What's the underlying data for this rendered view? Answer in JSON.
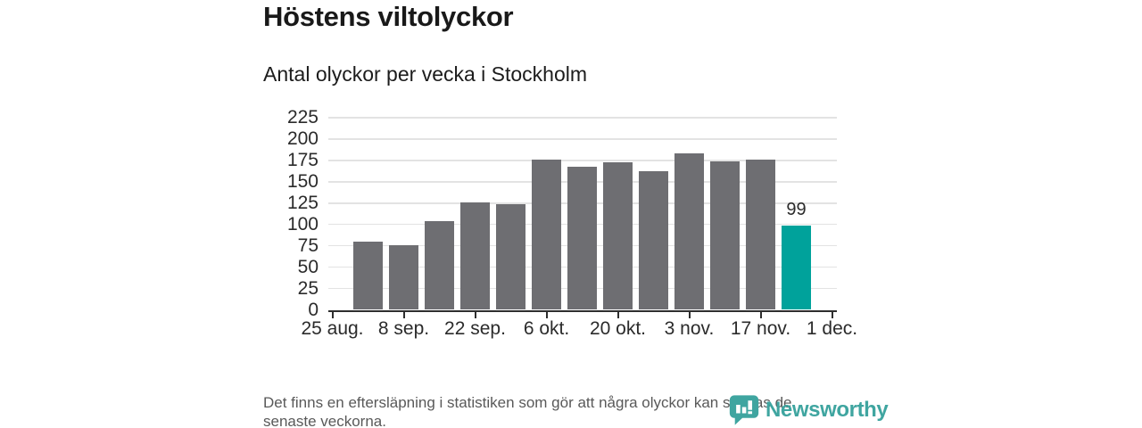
{
  "header": {
    "title": "Höstens viltolyckor",
    "subtitle": "Antal olyckor per vecka i Stockholm"
  },
  "footer": {
    "lines": [
      "Det finns en eftersläpning i statistiken som gör att några olyckor kan saknas de",
      "senaste veckorna."
    ]
  },
  "branding": {
    "logo_text": "Newsworthy",
    "logo_icon": "newsworthy-bubble-barchart-icon",
    "brand_color": "#3fa5a0"
  },
  "chart_data": {
    "type": "bar",
    "title": "Höstens viltolyckor",
    "subtitle": "Antal olyckor per vecka i Stockholm",
    "values": [
      80,
      76,
      104,
      126,
      124,
      176,
      168,
      173,
      162,
      183,
      174,
      176,
      99
    ],
    "highlight_index": 12,
    "data_labels": [
      {
        "index": 12,
        "text": "99"
      }
    ],
    "x_tick_labels": [
      "25 aug.",
      "8 sep.",
      "22 sep.",
      "6 okt.",
      "20 okt.",
      "3 nov.",
      "17 nov.",
      "1 dec."
    ],
    "y_tick_labels": [
      0,
      25,
      50,
      75,
      100,
      125,
      150,
      175,
      200,
      225
    ],
    "ylim": [
      0,
      235
    ],
    "bars_per_tick_interval": 2,
    "grid": true,
    "legend": false,
    "colors": {
      "bar": "#6e6e72",
      "highlight": "#00a29b",
      "gridline": "#e3e3e3",
      "axis": "#2e2e2e"
    }
  }
}
